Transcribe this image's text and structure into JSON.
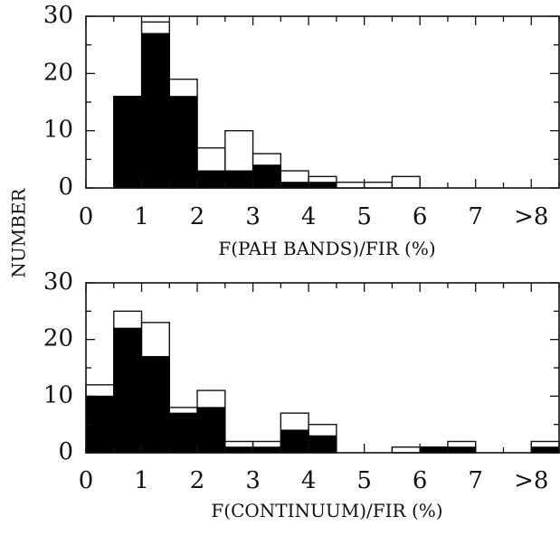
{
  "chart_data": [
    {
      "type": "bar",
      "stacked_overlay": true,
      "xlabel": "F(PAH BANDS)/FIR (%)",
      "ylabel": "NUMBER",
      "xlim": [
        0,
        8.5
      ],
      "ylim": [
        0,
        30
      ],
      "bin_width": 0.5,
      "x_tick_labels": [
        "0",
        "1",
        "2",
        "3",
        "4",
        "5",
        "6",
        "7",
        ">8"
      ],
      "y_tick_labels": [
        "0",
        "10",
        "20",
        "30"
      ],
      "x_ticks": [
        0,
        1,
        2,
        3,
        4,
        5,
        6,
        7,
        8
      ],
      "y_ticks": [
        0,
        10,
        20,
        30
      ],
      "bin_starts": [
        0,
        0.5,
        1.0,
        1.5,
        2.0,
        2.5,
        3.0,
        3.5,
        4.0,
        4.5,
        5.0,
        5.5,
        6.0,
        6.5,
        7.0,
        7.5,
        8.0
      ],
      "series": [
        {
          "style": "open",
          "values": [
            0,
            16,
            29,
            19,
            7,
            10,
            6,
            3,
            2,
            1,
            1,
            2,
            0,
            0,
            0,
            0,
            0
          ]
        },
        {
          "style": "filled",
          "values": [
            0,
            16,
            27,
            16,
            3,
            3,
            4,
            1,
            1,
            0,
            0,
            0,
            0,
            0,
            0,
            0,
            0
          ]
        }
      ],
      "colors": {
        "filled": "#000000",
        "open": "#ffffff",
        "axis": "#111111"
      },
      "grid": false
    },
    {
      "type": "bar",
      "stacked_overlay": true,
      "xlabel": "F(CONTINUUM)/FIR (%)",
      "ylabel": "NUMBER",
      "xlim": [
        0,
        8.5
      ],
      "ylim": [
        0,
        30
      ],
      "bin_width": 0.5,
      "x_tick_labels": [
        "0",
        "1",
        "2",
        "3",
        "4",
        "5",
        "6",
        "7",
        ">8"
      ],
      "y_tick_labels": [
        "0",
        "10",
        "20",
        "30"
      ],
      "x_ticks": [
        0,
        1,
        2,
        3,
        4,
        5,
        6,
        7,
        8
      ],
      "y_ticks": [
        0,
        10,
        20,
        30
      ],
      "bin_starts": [
        0,
        0.5,
        1.0,
        1.5,
        2.0,
        2.5,
        3.0,
        3.5,
        4.0,
        4.5,
        5.0,
        5.5,
        6.0,
        6.5,
        7.0,
        7.5,
        8.0
      ],
      "series": [
        {
          "style": "open",
          "values": [
            12,
            25,
            23,
            8,
            11,
            2,
            2,
            7,
            5,
            0,
            0,
            1,
            1,
            2,
            0,
            0,
            2
          ]
        },
        {
          "style": "filled",
          "values": [
            10,
            22,
            17,
            7,
            8,
            1,
            1,
            4,
            3,
            0,
            0,
            0,
            1,
            1,
            0,
            0,
            1
          ]
        }
      ],
      "colors": {
        "filled": "#000000",
        "open": "#ffffff",
        "axis": "#111111"
      },
      "grid": false
    }
  ]
}
